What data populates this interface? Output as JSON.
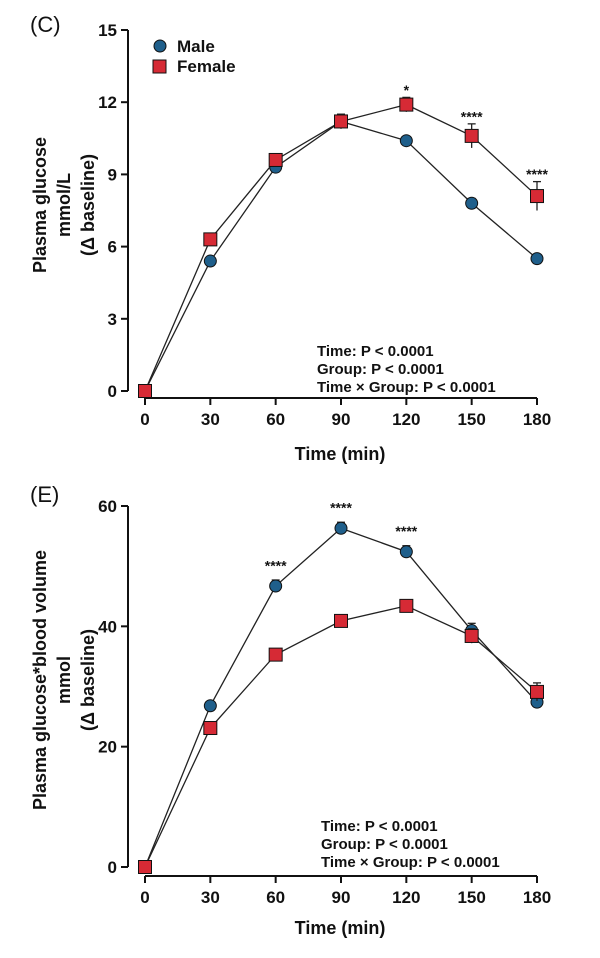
{
  "chart_data": [
    {
      "panel_label": "(C)",
      "type": "line",
      "x": [
        0,
        30,
        60,
        90,
        120,
        150,
        180
      ],
      "xticks": [
        "0",
        "30",
        "60",
        "90",
        "120",
        "150",
        "180"
      ],
      "xlabel": "Time (min)",
      "ylabel_lines": [
        "Plasma glucose",
        "mmol/L",
        "(Δ baseline)"
      ],
      "ylim": [
        0,
        15
      ],
      "yticks": [
        0,
        3,
        6,
        9,
        12,
        15
      ],
      "series": [
        {
          "name": "Male",
          "marker": "circle",
          "color": "#1f5f8b",
          "values": [
            0,
            5.4,
            9.3,
            11.2,
            10.4,
            7.8,
            5.5
          ],
          "err": [
            0,
            0,
            0.2,
            0.3,
            0,
            0.2,
            0
          ]
        },
        {
          "name": "Female",
          "marker": "square",
          "color": "#d62a35",
          "values": [
            0,
            6.3,
            9.6,
            11.2,
            11.9,
            10.6,
            8.1
          ],
          "err": [
            0,
            0,
            0,
            0.3,
            0.3,
            0.5,
            0.6
          ]
        }
      ],
      "significance": [
        {
          "x": 120,
          "y": 12.3,
          "label": "*"
        },
        {
          "x": 150,
          "y": 11.2,
          "label": "****"
        },
        {
          "x": 180,
          "y": 8.8,
          "label": "****"
        }
      ],
      "stats": [
        "Time: P < 0.0001",
        "Group: P < 0.0001",
        "Time × Group: P < 0.0001"
      ],
      "legend": [
        "Male",
        "Female"
      ]
    },
    {
      "panel_label": "(E)",
      "type": "line",
      "x": [
        0,
        30,
        60,
        90,
        120,
        150,
        180
      ],
      "xticks": [
        "0",
        "30",
        "60",
        "90",
        "120",
        "150",
        "180"
      ],
      "xlabel": "Time (min)",
      "ylabel_lines": [
        "Plasma glucose*blood volume",
        "mmol",
        "(Δ baseline)"
      ],
      "ylim": [
        0,
        60
      ],
      "yticks": [
        0,
        20,
        40,
        60
      ],
      "series": [
        {
          "name": "Male",
          "marker": "circle",
          "color": "#1f5f8b",
          "values": [
            0,
            26.8,
            46.7,
            56.3,
            52.4,
            39.3,
            27.4
          ],
          "err": [
            0,
            0,
            1.0,
            1.0,
            1.0,
            1.2,
            1.0
          ]
        },
        {
          "name": "Female",
          "marker": "square",
          "color": "#d62a35",
          "values": [
            0,
            23.1,
            35.3,
            40.9,
            43.4,
            38.4,
            29.1
          ],
          "err": [
            0,
            0,
            0,
            0,
            0.8,
            1.2,
            1.5
          ]
        }
      ],
      "significance": [
        {
          "x": 60,
          "y": 49.3,
          "label": "****"
        },
        {
          "x": 90,
          "y": 58.9,
          "label": "****"
        },
        {
          "x": 120,
          "y": 55.0,
          "label": "****"
        }
      ],
      "stats": [
        "Time: P < 0.0001",
        "Group: P < 0.0001",
        "Time × Group: P < 0.0001"
      ]
    }
  ]
}
